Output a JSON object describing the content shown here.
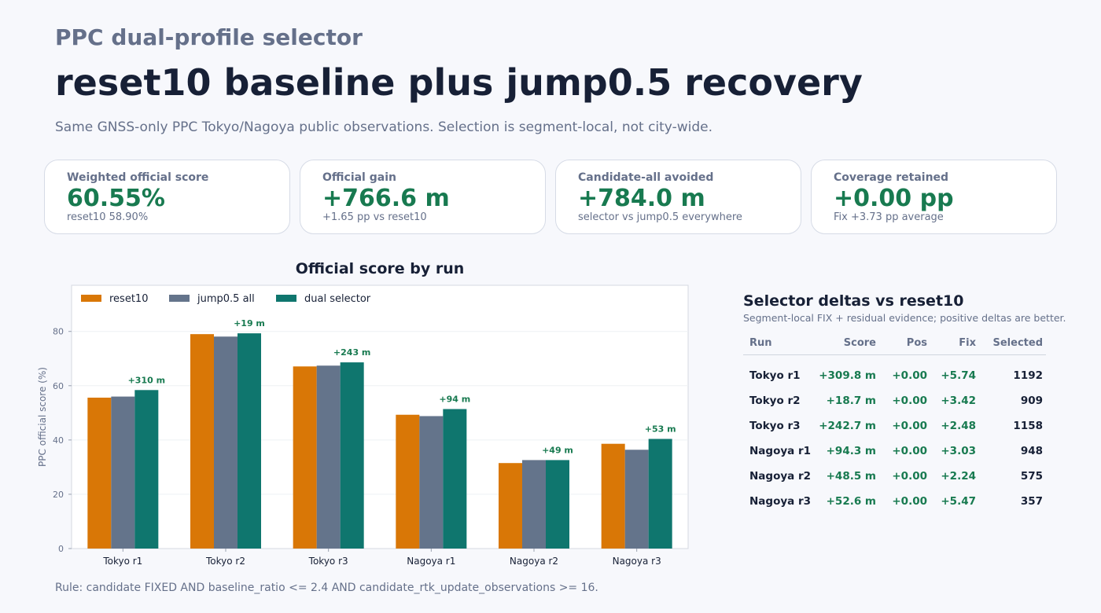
{
  "header": {
    "kicker": "PPC dual-profile selector",
    "headline": "reset10 baseline plus jump0.5 recovery",
    "subtitle": "Same GNSS-only PPC Tokyo/Nagoya public observations. Selection is segment-local, not city-wide."
  },
  "cards": [
    {
      "label": "Weighted official score",
      "value": "60.55%",
      "note": "reset10 58.90%"
    },
    {
      "label": "Official gain",
      "value": "+766.6 m",
      "note": "+1.65 pp vs reset10"
    },
    {
      "label": "Candidate-all avoided",
      "value": "+784.0 m",
      "note": "selector vs jump0.5 everywhere"
    },
    {
      "label": "Coverage retained",
      "value": "+0.00 pp",
      "note": "Fix +3.73 pp average"
    }
  ],
  "chart_data": {
    "type": "bar",
    "title": "Official score by run",
    "ylabel": "PPC official score (%)",
    "xlabel": "",
    "ylim": [
      0,
      97
    ],
    "yticks": [
      0,
      20,
      40,
      60,
      80
    ],
    "grid": true,
    "legend_position": "top-left",
    "categories": [
      "Tokyo r1",
      "Tokyo r2",
      "Tokyo r3",
      "Nagoya r1",
      "Nagoya r2",
      "Nagoya r3"
    ],
    "series": [
      {
        "name": "reset10",
        "color": "#d97706",
        "values": [
          55.6,
          79.0,
          67.1,
          49.3,
          31.5,
          38.6
        ]
      },
      {
        "name": "jump0.5 all",
        "color": "#64748b",
        "values": [
          56.0,
          78.1,
          67.4,
          48.8,
          32.6,
          36.4
        ]
      },
      {
        "name": "dual selector",
        "color": "#0f766e",
        "values": [
          58.4,
          79.3,
          68.6,
          51.4,
          32.6,
          40.4
        ]
      }
    ],
    "annotations": [
      "+310 m",
      "+19 m",
      "+243 m",
      "+94 m",
      "+49 m",
      "+53 m"
    ]
  },
  "table": {
    "title": "Selector deltas vs reset10",
    "subtitle": "Segment-local FIX + residual evidence; positive deltas are better.",
    "columns": [
      "Run",
      "Score",
      "Pos",
      "Fix",
      "Selected"
    ],
    "rows": [
      [
        "Tokyo r1",
        "+309.8 m",
        "+0.00",
        "+5.74",
        "1192"
      ],
      [
        "Tokyo r2",
        "+18.7 m",
        "+0.00",
        "+3.42",
        "909"
      ],
      [
        "Tokyo r3",
        "+242.7 m",
        "+0.00",
        "+2.48",
        "1158"
      ],
      [
        "Nagoya r1",
        "+94.3 m",
        "+0.00",
        "+3.03",
        "948"
      ],
      [
        "Nagoya r2",
        "+48.5 m",
        "+0.00",
        "+2.24",
        "575"
      ],
      [
        "Nagoya r3",
        "+52.6 m",
        "+0.00",
        "+5.47",
        "357"
      ]
    ]
  },
  "footer": "Rule: candidate FIXED AND baseline_ratio <= 2.4 AND candidate_rtk_update_observations >= 16."
}
